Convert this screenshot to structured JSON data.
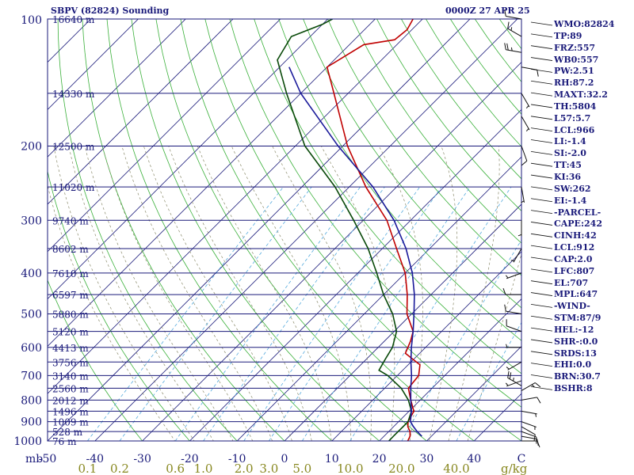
{
  "header": {
    "title": "SBPV (82824) Sounding",
    "time": "0000Z 27 APR 25"
  },
  "indices": [
    "WMO:82824",
    "TP:89",
    "FRZ:557",
    "WB0:557",
    "PW:2.51",
    "RH:87.2",
    "MAXT:32.2",
    "TH:5804",
    "L57:5.7",
    "LCL:966",
    "LI:-1.4",
    "SI:-2.0",
    "TT:45",
    "KI:36",
    "SW:262",
    "EI:-1.4",
    "-PARCEL-",
    "CAPE:242",
    "CINH:42",
    "LCL:912",
    "CAP:2.0",
    "LFC:807",
    "EL:707",
    "MPL:647",
    "-WIND-",
    "STM:87/9",
    "HEL:-12",
    "SHR-:0.0",
    "SRDS:13",
    "EHI:0.0",
    "BRN:30.7",
    "BSHR:8"
  ],
  "colors": {
    "frame": "#1a1a7a",
    "temperature": "#c00000",
    "dewpoint": "#0a4a0a",
    "parcel": "#1a1a9a",
    "dry_adiabat": "#3ab03a",
    "moist_adiabat": "#8a8a6a",
    "mixing_ratio": "#55aadd",
    "isotherm": "#1a1a7a",
    "mixing_label": "#888820"
  },
  "chart_data": {
    "type": "skew-t log-p sounding",
    "pressure_axis": {
      "scale": "log",
      "range_hPa": [
        1000,
        100
      ],
      "ticks": [
        100,
        200,
        300,
        400,
        500,
        600,
        700,
        800,
        900,
        1000
      ],
      "unit_label": "mb"
    },
    "temperature_axis": {
      "unit": "C",
      "range_C": [
        -50,
        50
      ],
      "ticks": [
        -50,
        -40,
        -30,
        -20,
        -10,
        0,
        10,
        20,
        30,
        40,
        50
      ],
      "tick_labels": [
        "-50",
        "-40",
        "-30",
        "-20",
        "-10",
        "0",
        "10",
        "20",
        "30",
        "40",
        "C"
      ]
    },
    "height_labels": [
      {
        "p": 100,
        "label": "16640 m"
      },
      {
        "p": 150,
        "label": "14330 m"
      },
      {
        "p": 200,
        "label": "12500 m"
      },
      {
        "p": 250,
        "label": "11020 m"
      },
      {
        "p": 300,
        "label": "9740 m"
      },
      {
        "p": 350,
        "label": "8602 m"
      },
      {
        "p": 400,
        "label": "7610 m"
      },
      {
        "p": 450,
        "label": "6597 m"
      },
      {
        "p": 500,
        "label": "5880 m"
      },
      {
        "p": 550,
        "label": "5120 m"
      },
      {
        "p": 600,
        "label": "4413 m"
      },
      {
        "p": 650,
        "label": "3756 m"
      },
      {
        "p": 700,
        "label": "3140 m"
      },
      {
        "p": 750,
        "label": "2560 m"
      },
      {
        "p": 800,
        "label": "2012 m"
      },
      {
        "p": 850,
        "label": "1496 m"
      },
      {
        "p": 900,
        "label": "1009 m"
      },
      {
        "p": 950,
        "label": "528 m"
      },
      {
        "p": 1000,
        "label": "76 m"
      }
    ],
    "mixing_ratio_labels": {
      "values": [
        0.1,
        0.2,
        0.6,
        1.0,
        2.0,
        3.0,
        5.0,
        10.0,
        20.0,
        40.0
      ],
      "labels": [
        "0.1",
        "0.2",
        "0.6",
        "1.0",
        "2.0",
        "3.0",
        "5.0",
        "10.0",
        "20.0",
        "40.0"
      ],
      "unit": "g/kg"
    },
    "series": [
      {
        "name": "temperature",
        "points": [
          {
            "p": 1000,
            "t": 26.0
          },
          {
            "p": 975,
            "t": 25.5
          },
          {
            "p": 950,
            "t": 24.5
          },
          {
            "p": 925,
            "t": 23.0
          },
          {
            "p": 900,
            "t": 22.0
          },
          {
            "p": 850,
            "t": 21.0
          },
          {
            "p": 800,
            "t": 18.0
          },
          {
            "p": 750,
            "t": 15.0
          },
          {
            "p": 700,
            "t": 14.5
          },
          {
            "p": 660,
            "t": 12.5
          },
          {
            "p": 620,
            "t": 7.0
          },
          {
            "p": 580,
            "t": 5.5
          },
          {
            "p": 550,
            "t": 4.0
          },
          {
            "p": 500,
            "t": -1.0
          },
          {
            "p": 450,
            "t": -5.0
          },
          {
            "p": 400,
            "t": -10.0
          },
          {
            "p": 350,
            "t": -17.0
          },
          {
            "p": 300,
            "t": -25.0
          },
          {
            "p": 250,
            "t": -36.5
          },
          {
            "p": 200,
            "t": -49.0
          },
          {
            "p": 150,
            "t": -63.0
          },
          {
            "p": 130,
            "t": -70.0
          },
          {
            "p": 115,
            "t": -67.0
          },
          {
            "p": 112,
            "t": -61.5
          },
          {
            "p": 106,
            "t": -61.0
          },
          {
            "p": 100,
            "t": -62.0
          }
        ]
      },
      {
        "name": "dewpoint",
        "points": [
          {
            "p": 1000,
            "t": 22.0
          },
          {
            "p": 975,
            "t": 22.0
          },
          {
            "p": 950,
            "t": 22.0
          },
          {
            "p": 925,
            "t": 22.0
          },
          {
            "p": 900,
            "t": 22.0
          },
          {
            "p": 850,
            "t": 20.5
          },
          {
            "p": 800,
            "t": 17.5
          },
          {
            "p": 750,
            "t": 13.5
          },
          {
            "p": 700,
            "t": 8.0
          },
          {
            "p": 680,
            "t": 5.0
          },
          {
            "p": 640,
            "t": 4.0
          },
          {
            "p": 600,
            "t": 3.0
          },
          {
            "p": 550,
            "t": 0.5
          },
          {
            "p": 500,
            "t": -4.0
          },
          {
            "p": 450,
            "t": -10.0
          },
          {
            "p": 400,
            "t": -16.0
          },
          {
            "p": 350,
            "t": -23.0
          },
          {
            "p": 300,
            "t": -32.0
          },
          {
            "p": 250,
            "t": -43.0
          },
          {
            "p": 200,
            "t": -58.0
          },
          {
            "p": 150,
            "t": -73.0
          },
          {
            "p": 125,
            "t": -82.0
          },
          {
            "p": 110,
            "t": -84.0
          },
          {
            "p": 103,
            "t": -80.0
          },
          {
            "p": 100,
            "t": -79.0
          }
        ]
      },
      {
        "name": "parcel",
        "points": [
          {
            "p": 975,
            "t": 28.0
          },
          {
            "p": 950,
            "t": 26.0
          },
          {
            "p": 925,
            "t": 24.2
          },
          {
            "p": 900,
            "t": 22.5
          },
          {
            "p": 850,
            "t": 20.5
          },
          {
            "p": 800,
            "t": 18.0
          },
          {
            "p": 750,
            "t": 15.5
          },
          {
            "p": 700,
            "t": 13.0
          },
          {
            "p": 650,
            "t": 10.0
          },
          {
            "p": 600,
            "t": 7.0
          },
          {
            "p": 550,
            "t": 4.0
          },
          {
            "p": 500,
            "t": 0.5
          },
          {
            "p": 450,
            "t": -3.5
          },
          {
            "p": 400,
            "t": -8.5
          },
          {
            "p": 350,
            "t": -15.0
          },
          {
            "p": 300,
            "t": -23.5
          },
          {
            "p": 250,
            "t": -35.0
          },
          {
            "p": 200,
            "t": -51.0
          },
          {
            "p": 150,
            "t": -70.0
          },
          {
            "p": 130,
            "t": -78.0
          }
        ]
      }
    ],
    "wind_barbs": [
      {
        "p": 1000,
        "dir_deg": 90,
        "speed_kt": 10
      },
      {
        "p": 975,
        "dir_deg": 100,
        "speed_kt": 10
      },
      {
        "p": 950,
        "dir_deg": 110,
        "speed_kt": 10
      },
      {
        "p": 925,
        "dir_deg": 120,
        "speed_kt": 10
      },
      {
        "p": 900,
        "dir_deg": 110,
        "speed_kt": 5
      },
      {
        "p": 850,
        "dir_deg": 100,
        "speed_kt": 5
      },
      {
        "p": 800,
        "dir_deg": 80,
        "speed_kt": 10
      },
      {
        "p": 760,
        "dir_deg": 60,
        "speed_kt": 15
      },
      {
        "p": 740,
        "dir_deg": 300,
        "speed_kt": 25
      },
      {
        "p": 720,
        "dir_deg": 250,
        "speed_kt": 5
      },
      {
        "p": 650,
        "dir_deg": 240,
        "speed_kt": 5
      },
      {
        "p": 600,
        "dir_deg": 270,
        "speed_kt": 5
      },
      {
        "p": 550,
        "dir_deg": 290,
        "speed_kt": 10
      },
      {
        "p": 500,
        "dir_deg": 280,
        "speed_kt": 10
      },
      {
        "p": 450,
        "dir_deg": 270,
        "speed_kt": 10
      },
      {
        "p": 400,
        "dir_deg": 250,
        "speed_kt": 5
      },
      {
        "p": 350,
        "dir_deg": 210,
        "speed_kt": 5
      },
      {
        "p": 300,
        "dir_deg": 180,
        "speed_kt": 5
      },
      {
        "p": 250,
        "dir_deg": 170,
        "speed_kt": 5
      },
      {
        "p": 200,
        "dir_deg": 160,
        "speed_kt": 10
      },
      {
        "p": 170,
        "dir_deg": 150,
        "speed_kt": 5
      },
      {
        "p": 150,
        "dir_deg": 150,
        "speed_kt": 5
      },
      {
        "p": 130,
        "dir_deg": 100,
        "speed_kt": 10
      },
      {
        "p": 120,
        "dir_deg": 280,
        "speed_kt": 25
      },
      {
        "p": 110,
        "dir_deg": 300,
        "speed_kt": 15
      },
      {
        "p": 100,
        "dir_deg": 280,
        "speed_kt": 10
      }
    ]
  }
}
